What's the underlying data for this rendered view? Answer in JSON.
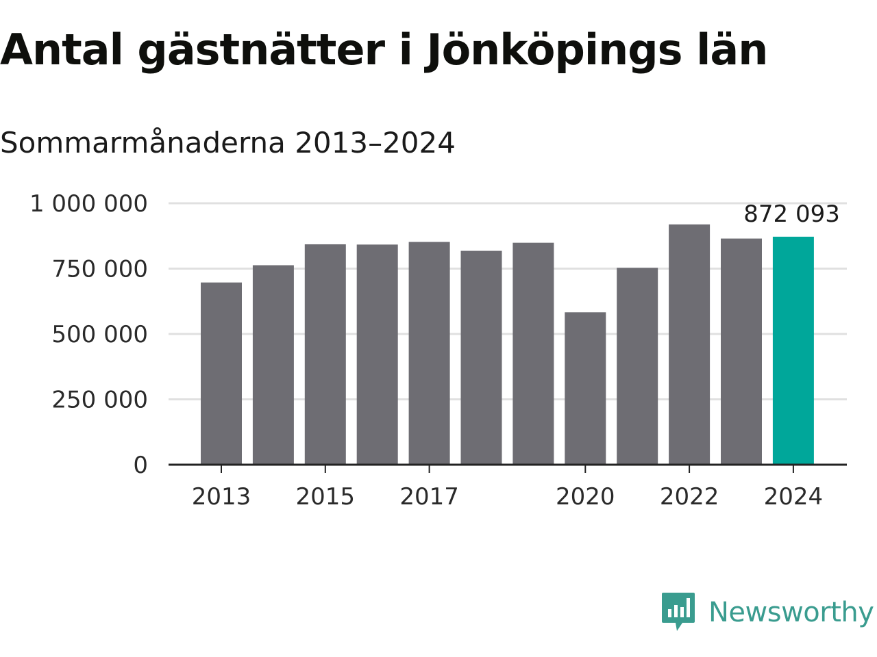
{
  "header": {
    "title": "Antal gästnätter i Jönköpings län",
    "subtitle": "Sommarmånaderna 2013–2024"
  },
  "brand": {
    "name": "Newsworthy",
    "icon": "newsworthy-logo-icon",
    "color": "#3a9c8f"
  },
  "colors": {
    "bar": "#6e6d73",
    "highlight": "#00a79a",
    "grid": "#e0e0e0",
    "axis": "#222222"
  },
  "chart_data": {
    "type": "bar",
    "categories": [
      "2013",
      "2014",
      "2015",
      "2016",
      "2017",
      "2018",
      "2019",
      "2020",
      "2021",
      "2022",
      "2023",
      "2024"
    ],
    "values": [
      697000,
      763000,
      843000,
      842000,
      852000,
      818000,
      849000,
      583000,
      753000,
      919000,
      865000,
      872093
    ],
    "highlight_index": 11,
    "highlight_label": "872 093",
    "ylim": [
      0,
      1000000
    ],
    "yticks": [
      0,
      250000,
      500000,
      750000,
      1000000
    ],
    "ytick_labels": [
      "0",
      "250 000",
      "500 000",
      "750 000",
      "1 000 000"
    ],
    "xtick_labels": [
      "2013",
      "2015",
      "2017",
      "2020",
      "2022",
      "2024"
    ],
    "grid": true,
    "legend": "none"
  }
}
